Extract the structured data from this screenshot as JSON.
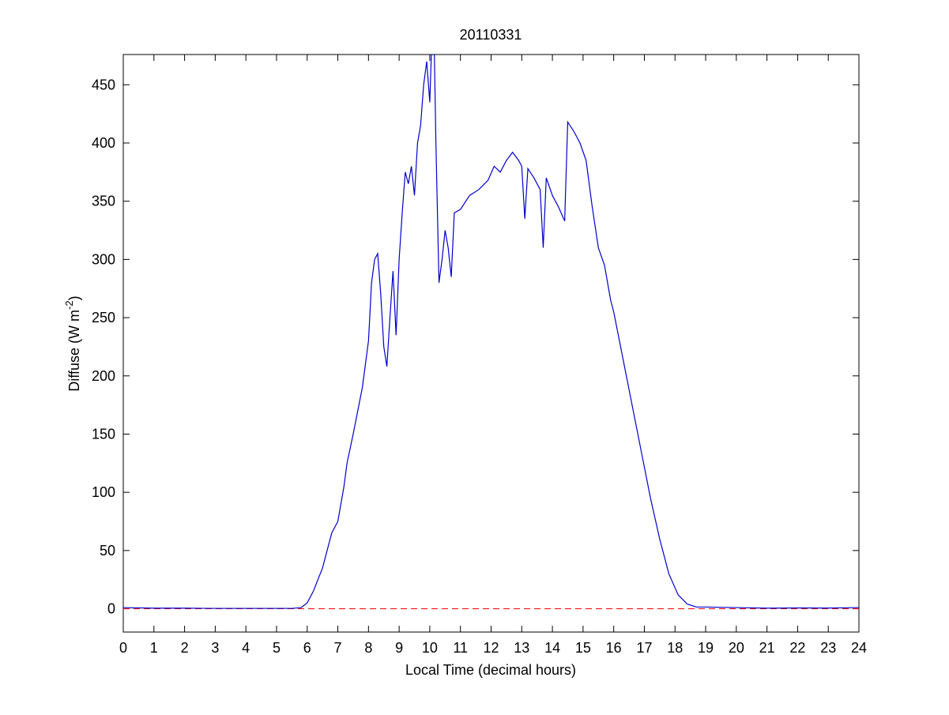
{
  "chart_data": {
    "type": "line",
    "title": "20110331",
    "xlabel": "Local Time (decimal hours)",
    "ylabel": {
      "text": "Diffuse (W m",
      "sup": "-2",
      "end": ")"
    },
    "xlim": [
      0,
      24
    ],
    "xticks": [
      0,
      1,
      2,
      3,
      4,
      5,
      6,
      7,
      8,
      9,
      10,
      11,
      12,
      13,
      14,
      15,
      16,
      17,
      18,
      19,
      20,
      21,
      22,
      23,
      24
    ],
    "ylim": [
      -20,
      476
    ],
    "yticks": [
      0,
      50,
      100,
      150,
      200,
      250,
      300,
      350,
      400,
      450
    ],
    "grid": false,
    "reference_line": {
      "value": 0,
      "color": "#ff0000",
      "style": "dashed"
    },
    "series": [
      {
        "color": "#0000cc",
        "x": [
          0,
          1,
          2,
          3,
          4,
          5,
          5.5,
          5.8,
          6,
          6.2,
          6.5,
          6.8,
          7,
          7.1,
          7.2,
          7.3,
          7.5,
          7.8,
          8,
          8.1,
          8.2,
          8.3,
          8.4,
          8.5,
          8.6,
          8.7,
          8.8,
          8.9,
          9,
          9.1,
          9.2,
          9.3,
          9.4,
          9.5,
          9.6,
          9.7,
          9.8,
          9.9,
          10,
          10.05,
          10.15,
          10.2,
          10.3,
          10.4,
          10.5,
          10.6,
          10.7,
          10.8,
          11,
          11.3,
          11.6,
          11.9,
          12.1,
          12.3,
          12.5,
          12.7,
          12.9,
          13,
          13.1,
          13.2,
          13.4,
          13.6,
          13.7,
          13.8,
          14,
          14.2,
          14.4,
          14.5,
          14.7,
          14.9,
          15.1,
          15.3,
          15.5,
          15.7,
          15.9,
          16,
          16.3,
          16.6,
          16.9,
          17.2,
          17.5,
          17.8,
          18.1,
          18.4,
          18.7,
          19,
          20,
          21,
          22,
          23,
          24
        ],
        "values": [
          1,
          0.5,
          0.5,
          0.3,
          0.3,
          0.3,
          0.3,
          1,
          5,
          15,
          35,
          65,
          75,
          90,
          105,
          125,
          150,
          190,
          230,
          280,
          300,
          305,
          270,
          225,
          208,
          250,
          290,
          235,
          300,
          340,
          375,
          365,
          380,
          355,
          400,
          415,
          450,
          470,
          435,
          476,
          476,
          400,
          280,
          300,
          325,
          310,
          285,
          340,
          343,
          355,
          360,
          368,
          380,
          375,
          385,
          392,
          385,
          380,
          335,
          378,
          370,
          360,
          310,
          370,
          355,
          345,
          333,
          418,
          410,
          400,
          385,
          345,
          310,
          295,
          265,
          255,
          215,
          175,
          135,
          95,
          60,
          30,
          12,
          4,
          1.5,
          1.5,
          1,
          0.5,
          0.7,
          0.6,
          1
        ]
      }
    ]
  }
}
